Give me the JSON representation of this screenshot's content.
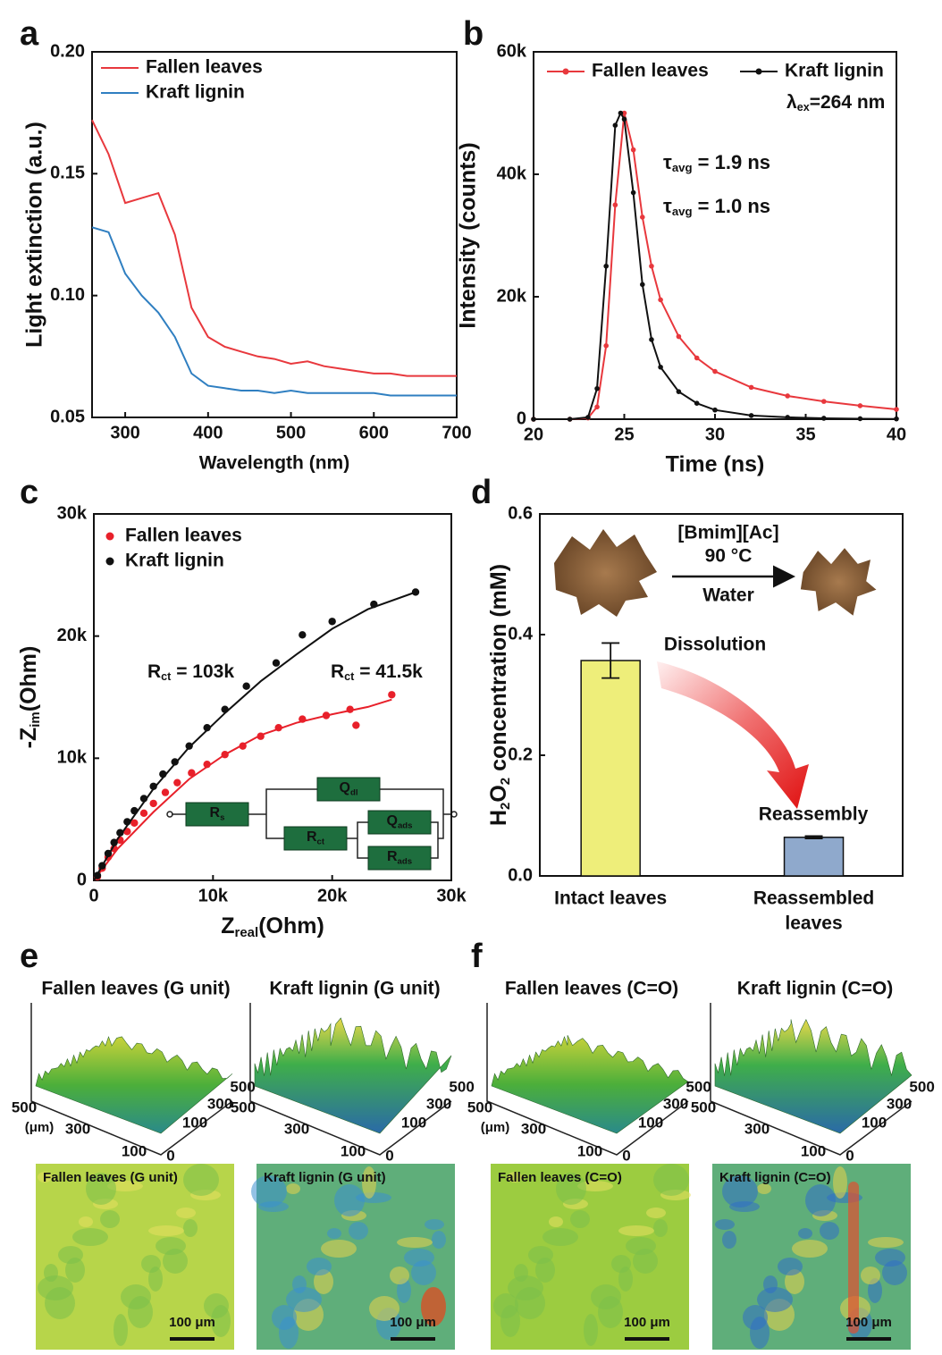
{
  "chart_data": [
    {
      "type": "line",
      "panel_label": "a",
      "xlabel": "Wavelength (nm)",
      "ylabel": "Light extinction (a.u.)",
      "xlim": [
        260,
        700
      ],
      "xticks": [
        300,
        400,
        500,
        600,
        700
      ],
      "ylim": [
        0.05,
        0.2
      ],
      "yticks": [
        0.05,
        {
          "value": 0.1,
          "label": "0.10"
        },
        0.15,
        {
          "value": 0.2,
          "label": "0.20"
        }
      ],
      "x": [
        260,
        280,
        300,
        320,
        340,
        360,
        380,
        400,
        420,
        440,
        460,
        480,
        500,
        520,
        540,
        560,
        580,
        600,
        620,
        640,
        660,
        680,
        700
      ],
      "series": [
        {
          "name": "Fallen leaves",
          "color": "#e8383d",
          "values": [
            0.172,
            0.158,
            0.138,
            0.14,
            0.142,
            0.125,
            0.095,
            0.083,
            0.079,
            0.077,
            0.075,
            0.074,
            0.072,
            0.073,
            0.071,
            0.07,
            0.069,
            0.068,
            0.068,
            0.067,
            0.067,
            0.067,
            0.067
          ]
        },
        {
          "name": "Kraft lignin",
          "color": "#2f7fc1",
          "values": [
            0.128,
            0.126,
            0.109,
            0.1,
            0.093,
            0.083,
            0.068,
            0.063,
            0.062,
            0.061,
            0.061,
            0.06,
            0.061,
            0.06,
            0.06,
            0.06,
            0.06,
            0.06,
            0.059,
            0.059,
            0.059,
            0.059,
            0.059
          ]
        }
      ]
    },
    {
      "type": "line",
      "markers": true,
      "panel_label": "b",
      "xlabel": "Time (ns)",
      "ylabel": "Intensity (counts)",
      "xlim": [
        20,
        40
      ],
      "xticks": [
        20,
        25,
        30,
        35,
        40
      ],
      "ylim": [
        0,
        60000
      ],
      "yticks": [
        0,
        {
          "value": 20000,
          "label": "20k"
        },
        {
          "value": 40000,
          "label": "40k"
        },
        {
          "value": 60000,
          "label": "60k"
        }
      ],
      "series": [
        {
          "name": "Fallen leaves",
          "color": "#e8383d",
          "x": [
            20,
            22,
            23,
            23.5,
            24,
            24.5,
            25,
            25.5,
            26,
            26.5,
            27,
            28,
            29,
            30,
            32,
            34,
            36,
            38,
            40
          ],
          "values": [
            0,
            0,
            200,
            2000,
            12000,
            35000,
            50000,
            44000,
            33000,
            25000,
            19500,
            13500,
            10000,
            7800,
            5200,
            3800,
            2900,
            2200,
            1600
          ]
        },
        {
          "name": "Kraft lignin",
          "color": "#111111",
          "x": [
            20,
            22,
            23,
            23.5,
            24,
            24.5,
            24.8,
            25,
            25.5,
            26,
            26.5,
            27,
            28,
            29,
            30,
            32,
            34,
            36,
            38,
            40
          ],
          "values": [
            0,
            0,
            300,
            5000,
            25000,
            48000,
            50000,
            49000,
            37000,
            22000,
            13000,
            8500,
            4500,
            2600,
            1500,
            600,
            300,
            150,
            80,
            50
          ]
        }
      ],
      "annotations": [
        {
          "color": "#111111",
          "parts": [
            {
              "text": "λ"
            },
            {
              "sub": "ex"
            },
            {
              "text": "=264 nm"
            }
          ]
        },
        {
          "color": "#e8383d",
          "parts": [
            {
              "text": "τ"
            },
            {
              "sub": "avg"
            },
            {
              "text": " = 1.9 ns"
            }
          ]
        },
        {
          "color": "#111111",
          "parts": [
            {
              "text": "τ"
            },
            {
              "sub": "avg"
            },
            {
              "text": " = 1.0 ns"
            }
          ]
        }
      ]
    },
    {
      "type": "scatter",
      "panel_label": "c",
      "xlabel": [
        {
          "text": "Z"
        },
        {
          "sub": "real"
        },
        {
          "text": "(Ohm)"
        }
      ],
      "ylabel": [
        {
          "text": "-Z"
        },
        {
          "sub": "im"
        },
        {
          "text": "(Ohm)"
        }
      ],
      "xlim": [
        0,
        30000
      ],
      "xticks": [
        0,
        {
          "value": 10000,
          "label": "10k"
        },
        {
          "value": 20000,
          "label": "20k"
        },
        {
          "value": 30000,
          "label": "30k"
        }
      ],
      "ylim": [
        0,
        30000
      ],
      "yticks": [
        0,
        {
          "value": 10000,
          "label": "10k"
        },
        {
          "value": 20000,
          "label": "20k"
        },
        {
          "value": 30000,
          "label": "30k"
        }
      ],
      "series": [
        {
          "name": "Fallen leaves",
          "color": "#e8202a",
          "x": [
            300,
            700,
            1200,
            1700,
            2200,
            2800,
            3400,
            4200,
            5000,
            6000,
            7000,
            8200,
            9500,
            11000,
            12500,
            14000,
            15500,
            17500,
            19500,
            21500,
            22000,
            25000
          ],
          "values": [
            300,
            1000,
            1900,
            2600,
            3300,
            4000,
            4700,
            5500,
            6300,
            7200,
            8000,
            8800,
            9500,
            10300,
            11000,
            11800,
            12500,
            13200,
            13500,
            14000,
            12700,
            15200
          ],
          "fit_x": [
            0,
            2000,
            5000,
            8000,
            11000,
            14000,
            17000,
            20000,
            23000,
            25000
          ],
          "fit_y": [
            0,
            2600,
            5600,
            8300,
            10300,
            11900,
            12900,
            13600,
            14200,
            14800
          ]
        },
        {
          "name": "Kraft lignin",
          "color": "#111111",
          "x": [
            300,
            700,
            1200,
            1700,
            2200,
            2800,
            3400,
            4200,
            5000,
            5800,
            6800,
            8000,
            9500,
            11000,
            12800,
            15300,
            17500,
            20000,
            23500,
            27000
          ],
          "values": [
            400,
            1200,
            2200,
            3100,
            3900,
            4800,
            5700,
            6700,
            7700,
            8700,
            9700,
            11000,
            12500,
            14000,
            15900,
            17800,
            20100,
            21200,
            22600,
            23600
          ],
          "fit_x": [
            0,
            2000,
            5000,
            8000,
            11000,
            14000,
            17000,
            20000,
            23000,
            27000
          ],
          "fit_y": [
            0,
            3400,
            7500,
            10900,
            13700,
            16300,
            18500,
            20600,
            22200,
            23600
          ]
        }
      ],
      "annotations": [
        {
          "color": "#111111",
          "parts": [
            {
              "text": "R"
            },
            {
              "sub": "ct"
            },
            {
              "text": " = 103k"
            }
          ]
        },
        {
          "color": "#e8202a",
          "parts": [
            {
              "text": "R"
            },
            {
              "sub": "ct"
            },
            {
              "text": " = 41.5k"
            }
          ]
        }
      ],
      "circuit": [
        [
          {
            "text": "R"
          },
          {
            "sub": "s"
          }
        ],
        [
          {
            "text": "Q"
          },
          {
            "sub": "dl"
          }
        ],
        [
          {
            "text": "R"
          },
          {
            "sub": "ct"
          }
        ],
        [
          {
            "text": "Q"
          },
          {
            "sub": "ads"
          }
        ],
        [
          {
            "text": "R"
          },
          {
            "sub": "ads"
          }
        ]
      ]
    },
    {
      "type": "bar",
      "panel_label": "d",
      "ylabel": [
        {
          "text": "H"
        },
        {
          "sub": "2"
        },
        {
          "text": "O"
        },
        {
          "sub": "2"
        },
        {
          "text": " concentration (mM)"
        }
      ],
      "categories": [
        [
          "Intact leaves"
        ],
        [
          "Reassembled",
          "leaves"
        ]
      ],
      "values": [
        0.357,
        0.064
      ],
      "errors": [
        0.029,
        0.002
      ],
      "colors": [
        "#eeee7a",
        "#8fa9cc"
      ],
      "ylim": [
        0,
        0.6
      ],
      "yticks": [
        {
          "value": 0,
          "label": "0.0"
        },
        0.2,
        0.4,
        0.6
      ],
      "annotations": [
        "[Bmim][Ac]",
        "90 °C",
        "Water",
        "Dissolution",
        "Reassembly"
      ]
    }
  ],
  "surface_maps": [
    {
      "panel_label": "e",
      "items": [
        {
          "title": "Fallen leaves (G unit)",
          "map_label": "Fallen leaves (G unit)",
          "unit": "(μm)",
          "front_ticks": [
            500,
            300,
            100,
            0
          ],
          "side_ticks": [
            100,
            300,
            500
          ],
          "scale_bar": "100 μm"
        },
        {
          "title": "Kraft lignin (G unit)",
          "map_label": "Kraft lignin (G unit)",
          "front_ticks": [
            500,
            300,
            100,
            0
          ],
          "side_ticks": [
            100,
            300,
            500
          ],
          "scale_bar": "100 μm"
        }
      ]
    },
    {
      "panel_label": "f",
      "items": [
        {
          "title": "Fallen leaves (C=O)",
          "map_label": "Fallen leaves (C=O)",
          "unit": "(μm)",
          "front_ticks": [
            500,
            300,
            100,
            0
          ],
          "side_ticks": [
            100,
            300,
            500
          ],
          "scale_bar": "100 μm"
        },
        {
          "title": "Kraft lignin (C=O)",
          "map_label": "Kraft lignin (C=O)",
          "front_ticks": [
            500,
            300,
            100,
            0
          ],
          "side_ticks": [
            100,
            300,
            500
          ],
          "scale_bar": "100 μm"
        }
      ]
    }
  ]
}
